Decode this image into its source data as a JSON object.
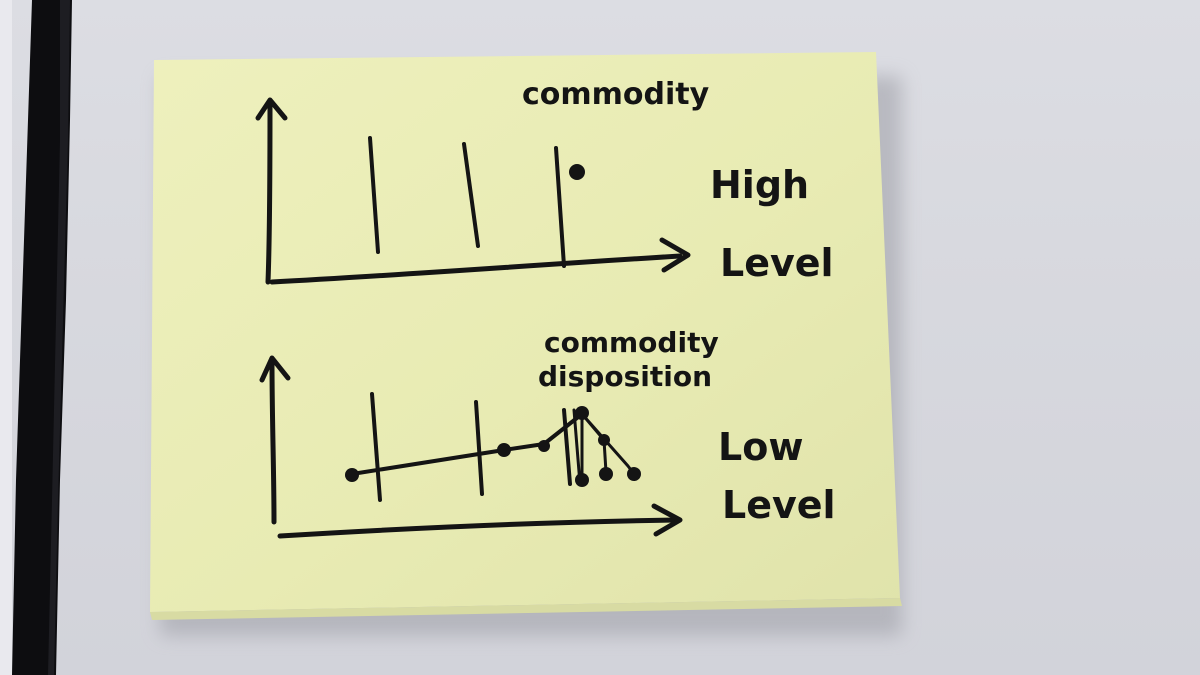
{
  "scene": {
    "description_kind": "photo",
    "note_color": "#eceeb8",
    "ink_color": "#141414",
    "background_color": "#d7d8de"
  },
  "top_sketch": {
    "title": "commodity",
    "side_label_line1": "High",
    "side_label_line2": "Level"
  },
  "bottom_sketch": {
    "title_line1": "commodity",
    "title_line2": "disposition",
    "side_label_line1": "Low",
    "side_label_line2": "Level"
  }
}
